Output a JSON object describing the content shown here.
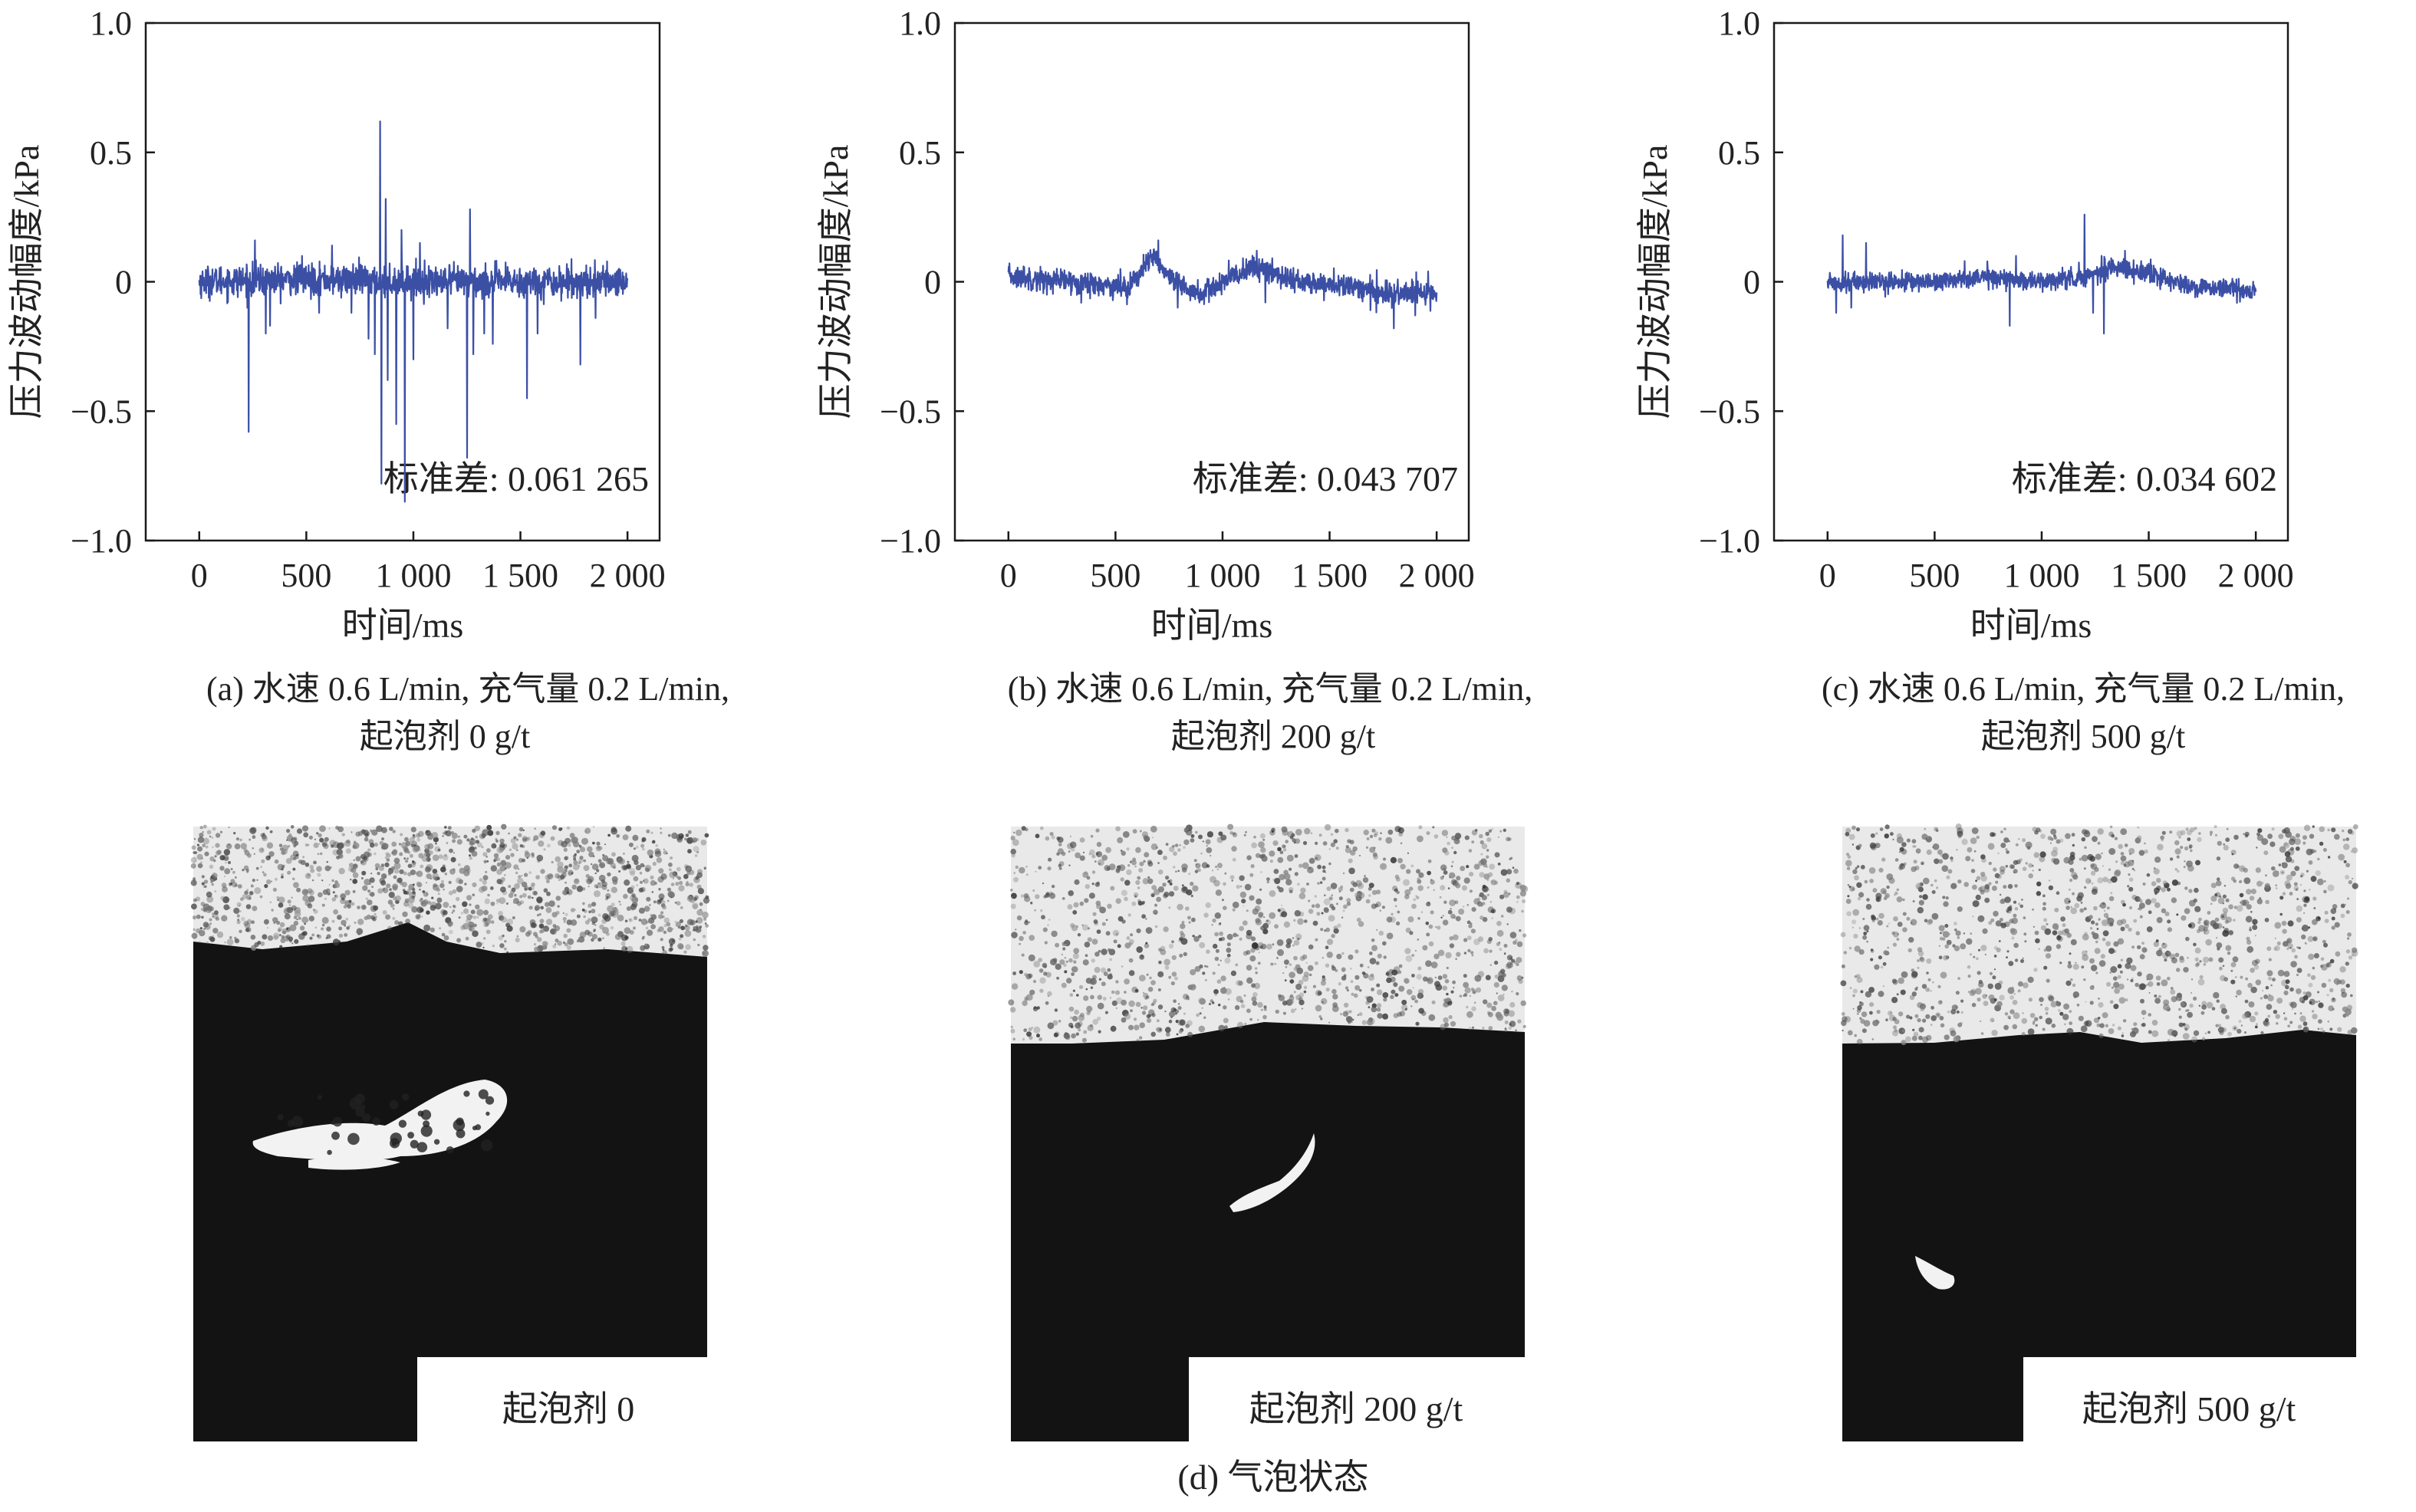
{
  "colors": {
    "line": "#3B4FA5",
    "axis": "#1a1a1a",
    "text": "#222222",
    "photo_dark": "#111111",
    "photo_light": "#e9e9e9"
  },
  "chart_data": [
    {
      "type": "line",
      "id": "a",
      "ylabel": "压力波动幅度/kPa",
      "xlabel": "时间/ms",
      "xlim": [
        -250,
        2150
      ],
      "ylim": [
        -1.0,
        1.0
      ],
      "x_ticks": [
        0,
        500,
        1000,
        1500,
        2000
      ],
      "x_tick_labels": [
        "0",
        "500",
        "1 000",
        "1 500",
        "2 000"
      ],
      "y_ticks": [
        1.0,
        0.5,
        0,
        -0.5,
        -1.0
      ],
      "y_tick_labels": [
        "1.0",
        "0.5",
        "0",
        "−0.5",
        "−1.0"
      ],
      "series": [
        {
          "x_range": [
            0,
            2000
          ],
          "noise_std": 0.03,
          "drift": [
            [
              0,
              0
            ],
            [
              500,
              0.01
            ],
            [
              1000,
              0.0
            ],
            [
              1500,
              0.0
            ],
            [
              2000,
              0.0
            ]
          ],
          "spikes": [
            [
              230,
              -0.58
            ],
            [
              260,
              0.16
            ],
            [
              310,
              -0.2
            ],
            [
              330,
              -0.17
            ],
            [
              480,
              0.1
            ],
            [
              560,
              -0.12
            ],
            [
              620,
              0.14
            ],
            [
              710,
              -0.12
            ],
            [
              790,
              -0.22
            ],
            [
              820,
              -0.28
            ],
            [
              845,
              0.62
            ],
            [
              850,
              -0.78
            ],
            [
              870,
              0.32
            ],
            [
              880,
              -0.38
            ],
            [
              920,
              -0.55
            ],
            [
              945,
              0.2
            ],
            [
              960,
              -0.85
            ],
            [
              1000,
              -0.3
            ],
            [
              1030,
              0.15
            ],
            [
              1160,
              -0.18
            ],
            [
              1250,
              -0.68
            ],
            [
              1265,
              0.28
            ],
            [
              1280,
              -0.28
            ],
            [
              1330,
              -0.2
            ],
            [
              1370,
              -0.24
            ],
            [
              1530,
              -0.45
            ],
            [
              1580,
              -0.2
            ],
            [
              1780,
              -0.32
            ],
            [
              1850,
              -0.14
            ]
          ]
        }
      ],
      "annotation": "标准差: 0.061 265",
      "caption_line1": "(a) 水速 0.6 L/min, 充气量 0.2 L/min,",
      "caption_line2": "起泡剂 0 g/t"
    },
    {
      "type": "line",
      "id": "b",
      "ylabel": "压力波动幅度/kPa",
      "xlabel": "时间/ms",
      "xlim": [
        -250,
        2150
      ],
      "ylim": [
        -1.0,
        1.0
      ],
      "x_ticks": [
        0,
        500,
        1000,
        1500,
        2000
      ],
      "x_tick_labels": [
        "0",
        "500",
        "1 000",
        "1 500",
        "2 000"
      ],
      "y_ticks": [
        1.0,
        0.5,
        0,
        -0.5,
        -1.0
      ],
      "y_tick_labels": [
        "1.0",
        "0.5",
        "0",
        "−0.5",
        "−1.0"
      ],
      "series": [
        {
          "x_range": [
            0,
            2000
          ],
          "noise_std": 0.022,
          "drift": [
            [
              0,
              0.02
            ],
            [
              300,
              0.0
            ],
            [
              560,
              -0.02
            ],
            [
              680,
              0.1
            ],
            [
              760,
              0.0
            ],
            [
              900,
              -0.05
            ],
            [
              1050,
              0.02
            ],
            [
              1150,
              0.06
            ],
            [
              1350,
              0.0
            ],
            [
              1600,
              -0.02
            ],
            [
              1800,
              -0.05
            ],
            [
              2000,
              -0.04
            ]
          ],
          "spikes": [
            [
              70,
              0.06
            ],
            [
              180,
              -0.05
            ],
            [
              620,
              0.06
            ],
            [
              700,
              0.16
            ],
            [
              790,
              -0.1
            ],
            [
              1160,
              0.12
            ],
            [
              1200,
              -0.08
            ],
            [
              1690,
              -0.11
            ],
            [
              1800,
              -0.18
            ],
            [
              1900,
              -0.13
            ],
            [
              1960,
              0.04
            ]
          ]
        }
      ],
      "annotation": "标准差: 0.043 707",
      "caption_line1": "(b) 水速 0.6 L/min, 充气量 0.2 L/min,",
      "caption_line2": "起泡剂 200 g/t"
    },
    {
      "type": "line",
      "id": "c",
      "ylabel": "压力波动幅度/kPa",
      "xlabel": "时间/ms",
      "xlim": [
        -250,
        2150
      ],
      "ylim": [
        -1.0,
        1.0
      ],
      "x_ticks": [
        0,
        500,
        1000,
        1500,
        2000
      ],
      "x_tick_labels": [
        "0",
        "500",
        "1 000",
        "1 500",
        "2 000"
      ],
      "y_ticks": [
        1.0,
        0.5,
        0,
        -0.5,
        -1.0
      ],
      "y_tick_labels": [
        "1.0",
        "0.5",
        "0",
        "−0.5",
        "−1.0"
      ],
      "series": [
        {
          "x_range": [
            0,
            2000
          ],
          "noise_std": 0.018,
          "drift": [
            [
              0,
              0
            ],
            [
              500,
              0.0
            ],
            [
              700,
              0.02
            ],
            [
              1000,
              0.0
            ],
            [
              1200,
              0.02
            ],
            [
              1350,
              0.06
            ],
            [
              1500,
              0.03
            ],
            [
              1700,
              -0.02
            ],
            [
              1900,
              -0.03
            ],
            [
              2000,
              -0.04
            ]
          ],
          "spikes": [
            [
              40,
              -0.12
            ],
            [
              70,
              0.18
            ],
            [
              110,
              -0.1
            ],
            [
              180,
              0.15
            ],
            [
              640,
              0.08
            ],
            [
              850,
              -0.17
            ],
            [
              880,
              0.1
            ],
            [
              1200,
              0.26
            ],
            [
              1240,
              -0.12
            ],
            [
              1280,
              0.1
            ],
            [
              1290,
              -0.2
            ],
            [
              1390,
              0.12
            ]
          ]
        }
      ],
      "annotation": "标准差: 0.034 602",
      "caption_line1": "(c) 水速 0.6 L/min, 充气量 0.2 L/min,",
      "caption_line2": "起泡剂 500 g/t"
    }
  ],
  "photos": [
    {
      "id": "a",
      "label": "起泡剂 0"
    },
    {
      "id": "b",
      "label": "起泡剂 200 g/t"
    },
    {
      "id": "c",
      "label": "起泡剂 500 g/t"
    }
  ],
  "photos_caption": "(d) 气泡状态"
}
